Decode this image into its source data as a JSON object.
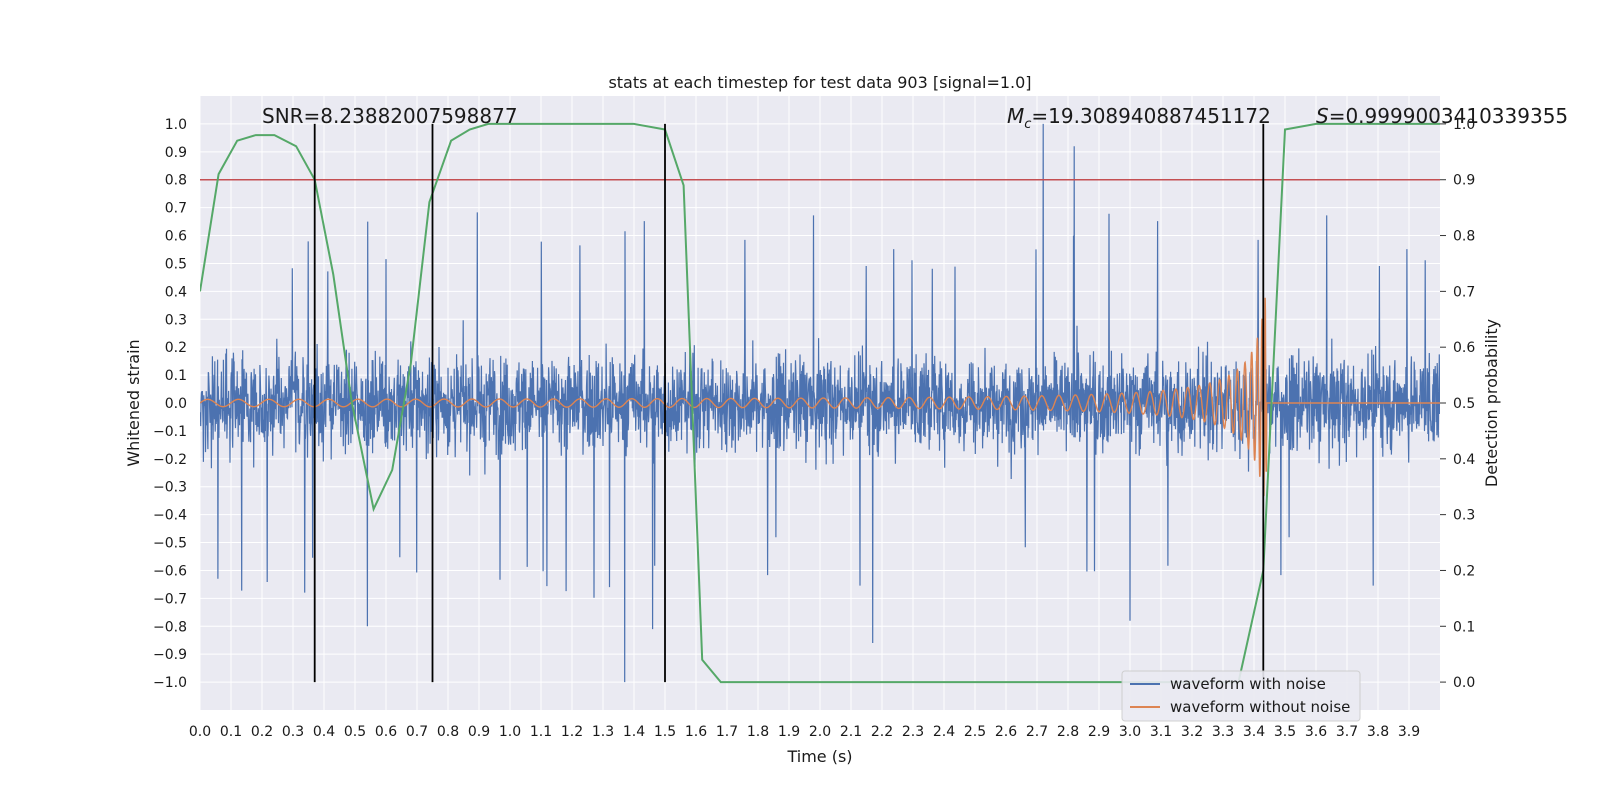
{
  "chart_data": {
    "type": "line",
    "title": "stats at each timestep for test data 903 [signal=1.0]",
    "xlabel": "Time (s)",
    "ylabel": "Whitened strain",
    "y2label": "Detection probability",
    "xlim": [
      0.0,
      4.0
    ],
    "ylim": [
      -1.1,
      1.1
    ],
    "y2lim": [
      -0.05,
      1.05
    ],
    "x_ticks": [
      "0.0",
      "0.1",
      "0.2",
      "0.3",
      "0.4",
      "0.5",
      "0.6",
      "0.7",
      "0.8",
      "0.9",
      "1.0",
      "1.1",
      "1.2",
      "1.3",
      "1.4",
      "1.5",
      "1.6",
      "1.7",
      "1.8",
      "1.9",
      "2.0",
      "2.1",
      "2.2",
      "2.3",
      "2.4",
      "2.5",
      "2.6",
      "2.7",
      "2.8",
      "2.9",
      "3.0",
      "3.1",
      "3.2",
      "3.3",
      "3.4",
      "3.5",
      "3.6",
      "3.7",
      "3.8",
      "3.9"
    ],
    "y_ticks": [
      "1.0",
      "0.9",
      "0.8",
      "0.7",
      "0.6",
      "0.5",
      "0.4",
      "0.3",
      "0.2",
      "0.1",
      "0.0",
      "−0.1",
      "−0.2",
      "−0.3",
      "−0.4",
      "−0.5",
      "−0.6",
      "−0.7",
      "−0.8",
      "−0.9",
      "−1.0"
    ],
    "y2_ticks": [
      "1.0",
      "0.9",
      "0.8",
      "0.7",
      "0.6",
      "0.5",
      "0.4",
      "0.3",
      "0.2",
      "0.1",
      "0.0"
    ],
    "grid": true,
    "legend_position": "bottom-right",
    "annotations": {
      "snr": "SNR=8.23882007598877",
      "mc_symbol": "M",
      "mc_sub": "c",
      "mc_value": "=19.308940887451172",
      "s_symbol": "S",
      "s_value": "=0.9999003410339355"
    },
    "threshold_line": {
      "y2": 0.9,
      "color": "#c44e52"
    },
    "vertical_markers": [
      {
        "x": 0.37,
        "y_from": -1.0,
        "y_to": 1.0
      },
      {
        "x": 0.75,
        "y_from": -1.0,
        "y_to": 1.0
      },
      {
        "x": 1.5,
        "y_from": -1.0,
        "y_to": 1.0
      },
      {
        "x": 3.43,
        "y_from": -1.0,
        "y_to": 1.0
      }
    ],
    "series": [
      {
        "name": "waveform with noise",
        "color": "#4c72b0",
        "axis": "left",
        "description_values": {
          "typical_range": [
            -0.4,
            0.4
          ],
          "spikes": [
            [
              2.72,
              1.0
            ],
            [
              2.82,
              0.92
            ],
            [
              1.37,
              -1.0
            ],
            [
              0.54,
              -0.8
            ],
            [
              2.17,
              -0.86
            ],
            [
              1.46,
              -0.81
            ],
            [
              3.0,
              -0.78
            ]
          ]
        }
      },
      {
        "name": "waveform without noise",
        "color": "#dd8452",
        "axis": "left",
        "chirp": {
          "start": 0.0,
          "merger": 3.44,
          "start_amplitude": 0.01,
          "peak_amplitude": 0.42,
          "start_freq": 10,
          "end_freq": 75
        }
      },
      {
        "name": "detection probability",
        "color": "#55a868",
        "axis": "right",
        "x": [
          0.0,
          0.06,
          0.12,
          0.18,
          0.24,
          0.31,
          0.37,
          0.43,
          0.49,
          0.56,
          0.62,
          0.68,
          0.74,
          0.81,
          0.87,
          0.93,
          1.0,
          1.1,
          1.2,
          1.3,
          1.4,
          1.5,
          1.56,
          1.62,
          1.68,
          1.75,
          2.0,
          2.5,
          3.0,
          3.2,
          3.35,
          3.43,
          3.5,
          3.6,
          3.7,
          3.8,
          3.9,
          4.0
        ],
        "y": [
          0.7,
          0.91,
          0.97,
          0.98,
          0.98,
          0.96,
          0.9,
          0.73,
          0.5,
          0.31,
          0.38,
          0.57,
          0.86,
          0.97,
          0.99,
          1.0,
          1.0,
          1.0,
          1.0,
          1.0,
          1.0,
          0.99,
          0.89,
          0.04,
          0.0,
          0.0,
          0.0,
          0.0,
          0.0,
          0.0,
          0.0,
          0.2,
          0.99,
          1.0,
          1.0,
          1.0,
          1.0,
          1.0
        ]
      }
    ]
  }
}
